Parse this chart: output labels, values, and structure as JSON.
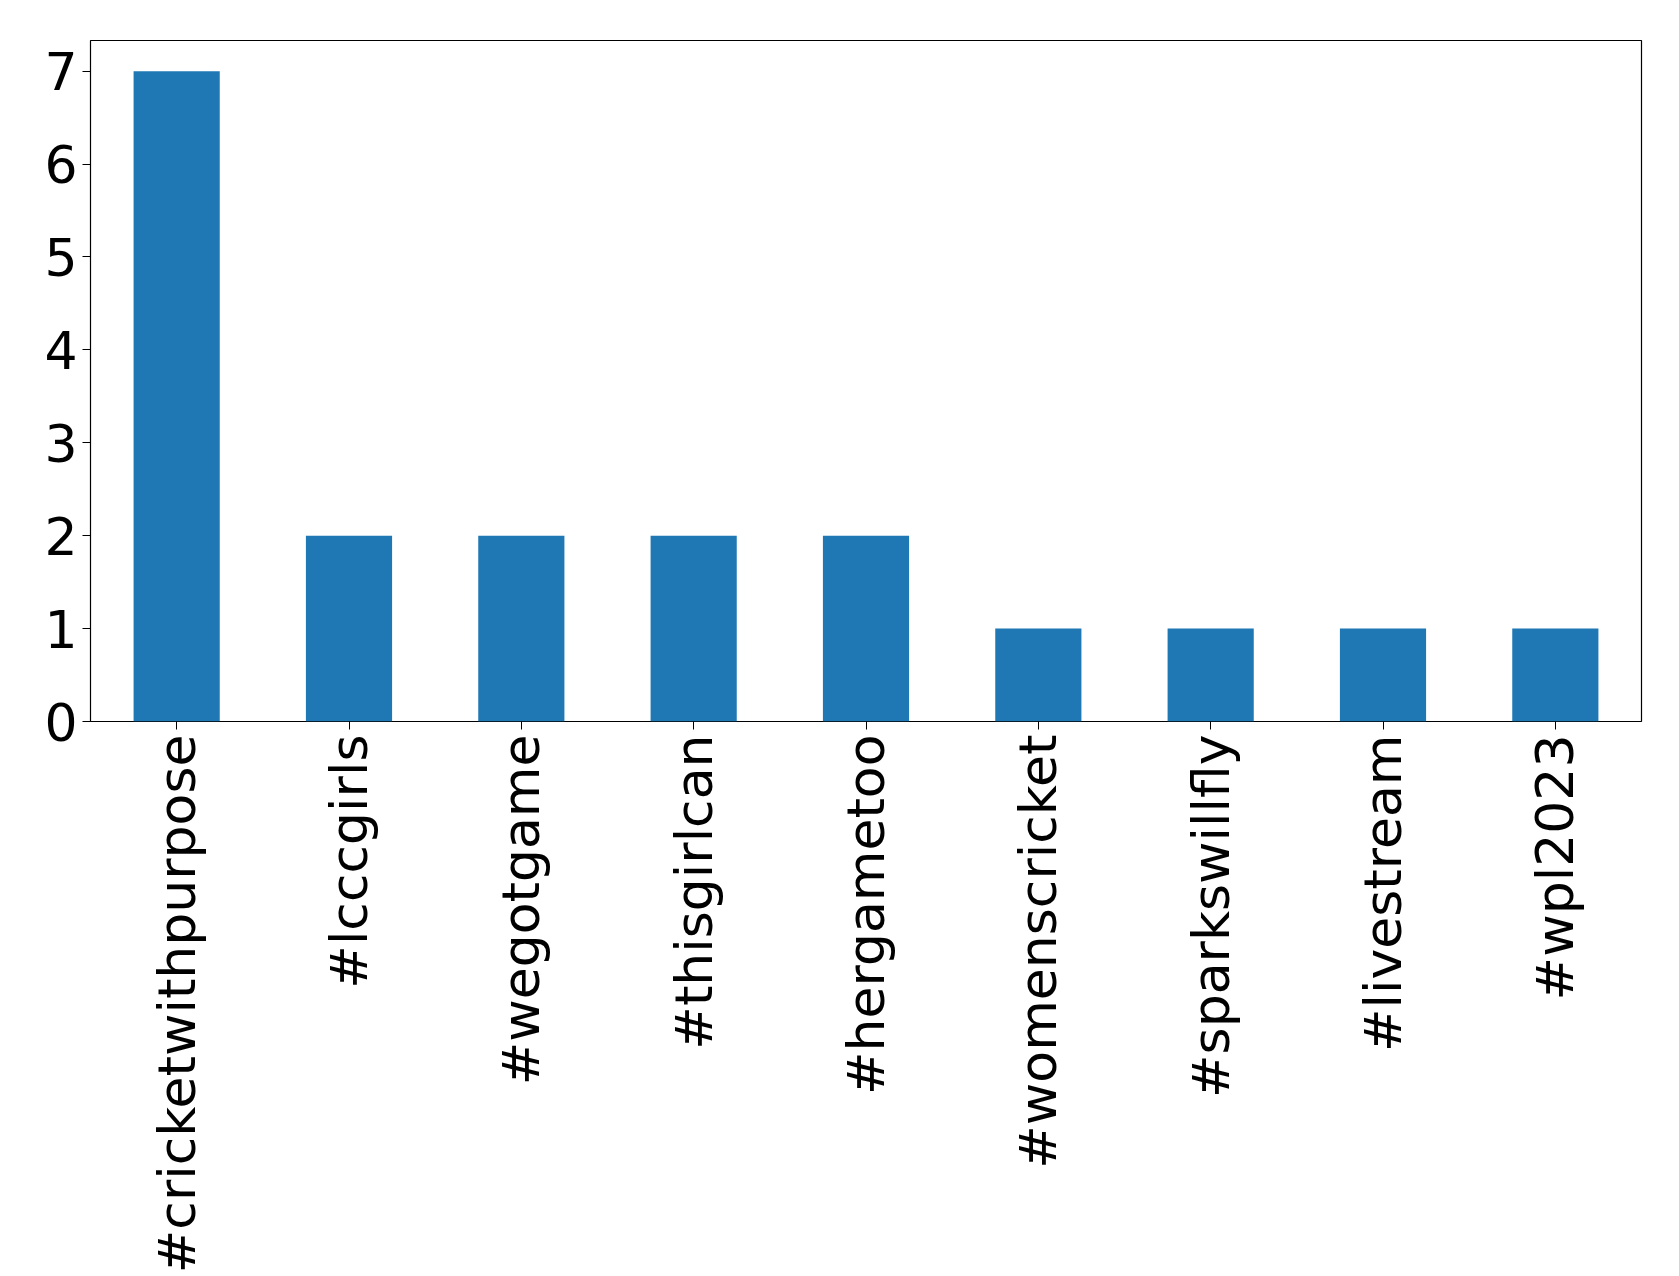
{
  "chart_data": {
    "type": "bar",
    "categories": [
      "#cricketwithpurpose",
      "#lcccgirls",
      "#wegotgame",
      "#thisgirlcan",
      "#hergametoo",
      "#womenscricket",
      "#sparkswillfly",
      "#livestream",
      "#wpl2023"
    ],
    "values": [
      7,
      2,
      2,
      2,
      2,
      1,
      1,
      1,
      1
    ],
    "color": "#1f77b4",
    "ylim": [
      0,
      7.33
    ],
    "yticks": [
      0,
      1,
      2,
      3,
      4,
      5,
      6,
      7
    ],
    "grid": false
  }
}
